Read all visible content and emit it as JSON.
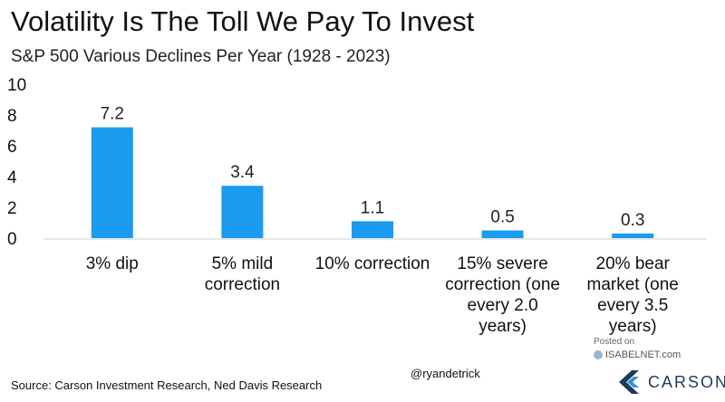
{
  "chart_data": {
    "type": "bar",
    "title": "Volatility Is The Toll We Pay To Invest",
    "subtitle": "S&P 500 Various Declines Per Year (1928 - 2023)",
    "categories": [
      [
        "3% dip"
      ],
      [
        "5% mild",
        "correction"
      ],
      [
        "10% correction"
      ],
      [
        "15% severe",
        "correction (one",
        "every 2.0",
        "years)"
      ],
      [
        "20% bear",
        "market (one",
        "every 3.5",
        "years)"
      ]
    ],
    "values": [
      7.2,
      3.4,
      1.1,
      0.5,
      0.3
    ],
    "value_labels": [
      "7.2",
      "3.4",
      "1.1",
      "0.5",
      "0.3"
    ],
    "ylim": [
      0,
      10
    ],
    "yticks": [
      0,
      2,
      4,
      6,
      8,
      10
    ],
    "xlabel": "",
    "ylabel": "",
    "grid": false,
    "bar_color": "#1a9bf0"
  },
  "footer": {
    "source": "Source: Carson Investment Research, Ned Davis Research",
    "handle": "@ryandetrick",
    "posted_on": "Posted on",
    "posted_site": "ISABELNET.com",
    "brand": "CARSON"
  },
  "colors": {
    "brand": "#1f3a5a",
    "brand_accent": "#3a8fd4"
  }
}
